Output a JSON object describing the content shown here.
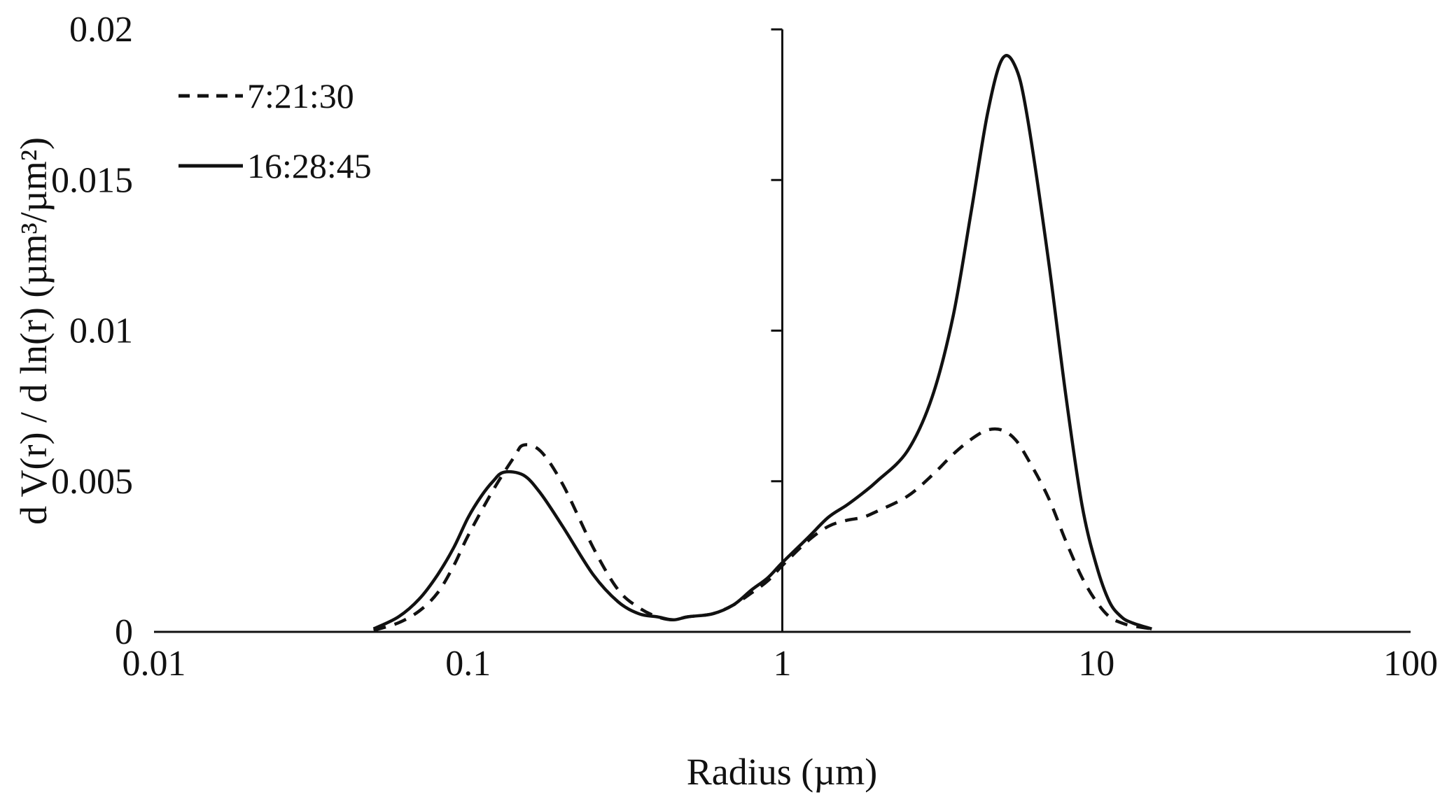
{
  "figure": {
    "background": "#ffffff",
    "axis_color": "#111111",
    "line_color": "#111111"
  },
  "chart_data": {
    "type": "line",
    "title": "",
    "xlabel": "Radius (µm)",
    "ylabel": "d V(r) / d ln(r) (µm³/µm²)",
    "x_scale": "log",
    "xlim": [
      0.01,
      100
    ],
    "ylim": [
      0,
      0.02
    ],
    "x_ticks": [
      0.01,
      0.1,
      1,
      10,
      100
    ],
    "x_tick_labels": [
      "0.01",
      "0.1",
      "1",
      "10",
      "100"
    ],
    "y_ticks": [
      0,
      0.005,
      0.01,
      0.015,
      0.02
    ],
    "y_tick_labels": [
      "0",
      "0.005",
      "0.01",
      "0.015",
      "0.02"
    ],
    "grid": false,
    "legend_position": "top-left-inside",
    "y_axis_cross_x": 1,
    "series": [
      {
        "name": "7:21:30",
        "style": "dashed",
        "color": "#111111",
        "points": [
          [
            0.05,
            5e-05
          ],
          [
            0.06,
            0.0003
          ],
          [
            0.07,
            0.0007
          ],
          [
            0.08,
            0.0013
          ],
          [
            0.09,
            0.0022
          ],
          [
            0.1,
            0.0032
          ],
          [
            0.12,
            0.0047
          ],
          [
            0.14,
            0.0058
          ],
          [
            0.15,
            0.0062
          ],
          [
            0.17,
            0.006
          ],
          [
            0.2,
            0.0049
          ],
          [
            0.25,
            0.0028
          ],
          [
            0.3,
            0.0014
          ],
          [
            0.35,
            0.0008
          ],
          [
            0.4,
            0.0005
          ],
          [
            0.45,
            0.0004
          ],
          [
            0.5,
            0.0005
          ],
          [
            0.6,
            0.0006
          ],
          [
            0.7,
            0.0009
          ],
          [
            0.8,
            0.0013
          ],
          [
            0.9,
            0.0017
          ],
          [
            1.0,
            0.0022
          ],
          [
            1.2,
            0.003
          ],
          [
            1.4,
            0.0035
          ],
          [
            1.6,
            0.0037
          ],
          [
            1.8,
            0.0038
          ],
          [
            2.0,
            0.004
          ],
          [
            2.5,
            0.0045
          ],
          [
            3.0,
            0.0052
          ],
          [
            3.5,
            0.0059
          ],
          [
            4.0,
            0.0064
          ],
          [
            4.5,
            0.0067
          ],
          [
            5.0,
            0.0067
          ],
          [
            5.5,
            0.0064
          ],
          [
            6.0,
            0.0058
          ],
          [
            7.0,
            0.0045
          ],
          [
            8.0,
            0.003
          ],
          [
            9.0,
            0.0018
          ],
          [
            10.0,
            0.001
          ],
          [
            11.0,
            0.0005
          ],
          [
            12.0,
            0.0003
          ],
          [
            13.0,
            0.0002
          ],
          [
            15.0,
            0.0001
          ]
        ]
      },
      {
        "name": "16:28:45",
        "style": "solid",
        "color": "#111111",
        "points": [
          [
            0.05,
            0.0001
          ],
          [
            0.06,
            0.0005
          ],
          [
            0.07,
            0.0011
          ],
          [
            0.08,
            0.0019
          ],
          [
            0.09,
            0.0028
          ],
          [
            0.1,
            0.0038
          ],
          [
            0.11,
            0.0045
          ],
          [
            0.12,
            0.005
          ],
          [
            0.13,
            0.0053
          ],
          [
            0.15,
            0.0052
          ],
          [
            0.17,
            0.0046
          ],
          [
            0.2,
            0.0035
          ],
          [
            0.25,
            0.0019
          ],
          [
            0.3,
            0.001
          ],
          [
            0.35,
            0.0006
          ],
          [
            0.4,
            0.0005
          ],
          [
            0.45,
            0.0004
          ],
          [
            0.5,
            0.0005
          ],
          [
            0.6,
            0.0006
          ],
          [
            0.7,
            0.0009
          ],
          [
            0.8,
            0.0014
          ],
          [
            0.9,
            0.0018
          ],
          [
            1.0,
            0.0023
          ],
          [
            1.2,
            0.0031
          ],
          [
            1.4,
            0.0038
          ],
          [
            1.6,
            0.0042
          ],
          [
            1.8,
            0.0046
          ],
          [
            2.0,
            0.005
          ],
          [
            2.5,
            0.006
          ],
          [
            3.0,
            0.0078
          ],
          [
            3.5,
            0.0105
          ],
          [
            4.0,
            0.014
          ],
          [
            4.5,
            0.0172
          ],
          [
            5.0,
            0.019
          ],
          [
            5.5,
            0.0188
          ],
          [
            6.0,
            0.0172
          ],
          [
            7.0,
            0.0125
          ],
          [
            8.0,
            0.0078
          ],
          [
            9.0,
            0.0042
          ],
          [
            10.0,
            0.0022
          ],
          [
            11.0,
            0.001
          ],
          [
            12.0,
            0.0005
          ],
          [
            13.0,
            0.0003
          ],
          [
            15.0,
            0.0001
          ]
        ]
      }
    ]
  },
  "legend": {
    "items": [
      {
        "label": "7:21:30",
        "style": "dashed"
      },
      {
        "label": "16:28:45",
        "style": "solid"
      }
    ]
  }
}
